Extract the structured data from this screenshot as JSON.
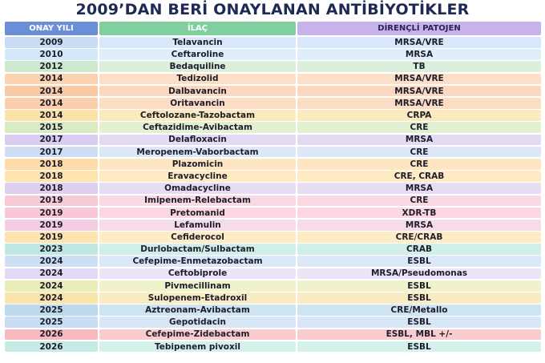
{
  "title": "2009’DAN BERİ ONAYLANAN ANTİBİYOTİKLER",
  "table": {
    "header": [
      "ONAY YILI",
      "İLAÇ",
      "DİRENÇLİ PATOJEN"
    ],
    "rows": [
      [
        "2009",
        "Telavancin",
        "MRSA/VRE"
      ],
      [
        "2010",
        "Ceftaroline",
        "MRSA"
      ],
      [
        "2012",
        "Bedaquiline",
        "TB"
      ],
      [
        "2014",
        "Tedizolid",
        "MRSA/VRE"
      ],
      [
        "2014",
        "Dalbavancin",
        "MRSA/VRE"
      ],
      [
        "2014",
        "Oritavancin",
        "MRSA/VRE"
      ],
      [
        "2014",
        "Ceftolozane-Tazobactam",
        "CRPA"
      ],
      [
        "2015",
        "Ceftazidime-Avibactam",
        "CRE"
      ],
      [
        "2017",
        "Delafloxacin",
        "MRSA"
      ],
      [
        "2017",
        "Meropenem-Vaborbactam",
        "CRE"
      ],
      [
        "2018",
        "Plazomicin",
        "CRE"
      ],
      [
        "2018",
        "Eravacycline",
        "CRE, CRAB"
      ],
      [
        "2018",
        "Omadacycline",
        "MRSA"
      ],
      [
        "2019",
        "Imipenem-Relebactam",
        "CRE"
      ],
      [
        "2019",
        "Pretomanid",
        "XDR-TB"
      ],
      [
        "2019",
        "Lefamulin",
        "MRSA"
      ],
      [
        "2019",
        "Cefiderocol",
        "CRE/CRAB"
      ],
      [
        "2023",
        "Durlobactam/Sulbactam",
        "CRAB"
      ],
      [
        "2024",
        "Cefepime-Enmetazobactam",
        "ESBL"
      ],
      [
        "2024",
        "Ceftobiprole",
        "MRSA/Pseudomonas"
      ],
      [
        "2024",
        "Pivmecillinam",
        "ESBL"
      ],
      [
        "2024",
        "Sulopenem-Etadroxil",
        "ESBL"
      ],
      [
        "2025",
        "Aztreonam-Avibactam",
        "CRE/Metallo"
      ],
      [
        "2025",
        "Gepotidacin",
        "ESBL"
      ],
      [
        "2026",
        "Cefepime-Zidebactam",
        "ESBL, MBL  +/-"
      ],
      [
        "2026",
        "Tebipenem pivoxil",
        "ESBL"
      ]
    ],
    "row_colors": [
      "#c9def6",
      "#d3e8f8",
      "#cfe9cf",
      "#fbd3b0",
      "#f9c9a6",
      "#fbcfae",
      "#fbe2a6",
      "#d8ebc2",
      "#d8ccef",
      "#cedff5",
      "#fddcaa",
      "#fde3ac",
      "#dfcff1",
      "#f7cad8",
      "#f8c8d6",
      "#f3cde2",
      "#fde4ae",
      "#c0e7e1",
      "#cddff4",
      "#e4d9f4",
      "#eaedb8",
      "#f7e5aa",
      "#bcd9ee",
      "#c9def4",
      "#f7b9be",
      "#c4ebe4"
    ]
  }
}
